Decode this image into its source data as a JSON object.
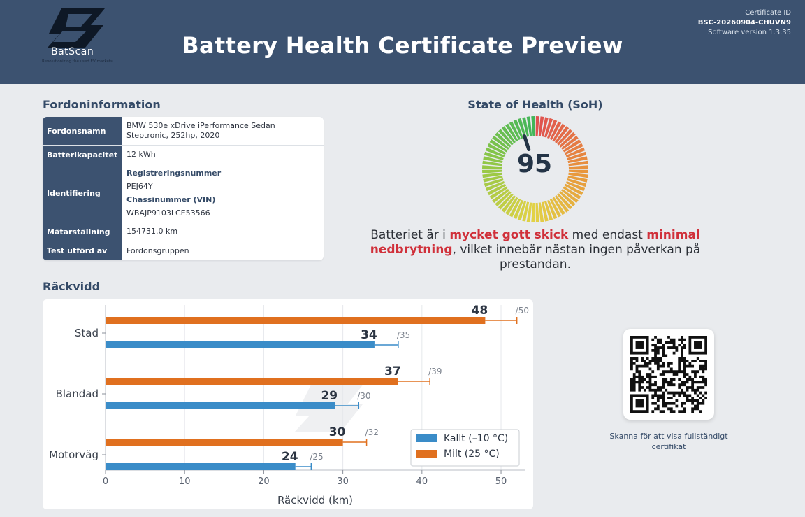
{
  "header": {
    "logo_name": "BatScan",
    "logo_tagline": "Revolutionizing the used EV markets",
    "title": "Battery Health Certificate Preview",
    "certificate_label": "Certificate ID",
    "certificate_id": "BSC-20260904-CHUVN9",
    "software_version": "Software version 1.3.35"
  },
  "vehicle": {
    "title": "Fordoninformation",
    "rows": {
      "name": {
        "label": "Fordonsnamn",
        "line1": "BMW 530e xDrive iPerformance Sedan",
        "line2": "Steptronic, 252hp, 2020"
      },
      "capacity": {
        "label": "Batterikapacitet",
        "value": "12 kWh"
      },
      "ident": {
        "label": "Identifiering",
        "reg_label": "Registreringsnummer",
        "reg_value": "PEJ64Y",
        "vin_label": "Chassinummer (VIN)",
        "vin_value": "WBAJP9103LCE53566"
      },
      "odometer": {
        "label": "Mätarställning",
        "value": "154731.0 km"
      },
      "tested_by": {
        "label": "Test utförd av",
        "value": "Fordonsgruppen"
      }
    }
  },
  "soh": {
    "title": "State of Health (SoH)",
    "value": 95,
    "text_pre": "Batteriet är i ",
    "text_hl1": "mycket gott skick",
    "text_mid": " med endast ",
    "text_hl2": "minimal nedbrytning",
    "text_post": ", vilket innebär nästan ingen påverkan på prestandan."
  },
  "range": {
    "title": "Räckvidd"
  },
  "chart_data": {
    "type": "bar",
    "orientation": "horizontal",
    "categories": [
      "Stad",
      "Blandad",
      "Motorväg"
    ],
    "series": [
      {
        "name": "Kallt (–10 °C)",
        "values": [
          34,
          29,
          24
        ],
        "max": [
          37,
          32,
          26
        ],
        "ref_labels": [
          "/35",
          "/30",
          "/25"
        ],
        "color": "#3a8cc8"
      },
      {
        "name": "Milt (25 °C)",
        "values": [
          48,
          37,
          30
        ],
        "max": [
          52,
          41,
          33
        ],
        "ref_labels": [
          "/50",
          "/39",
          "/32"
        ],
        "color": "#e0701f"
      }
    ],
    "xlabel": "Räckvidd (km)",
    "xticks": [
      0,
      10,
      20,
      30,
      40,
      50
    ],
    "xlim": [
      0,
      53
    ],
    "grid": true,
    "legend": "bottom-right"
  },
  "qr": {
    "caption": "Skanna för att visa fullständigt certifikat"
  },
  "colors": {
    "header": "#3c5270",
    "cold": "#3a8cc8",
    "mild": "#e0701f",
    "highlight": "#d0303a"
  }
}
